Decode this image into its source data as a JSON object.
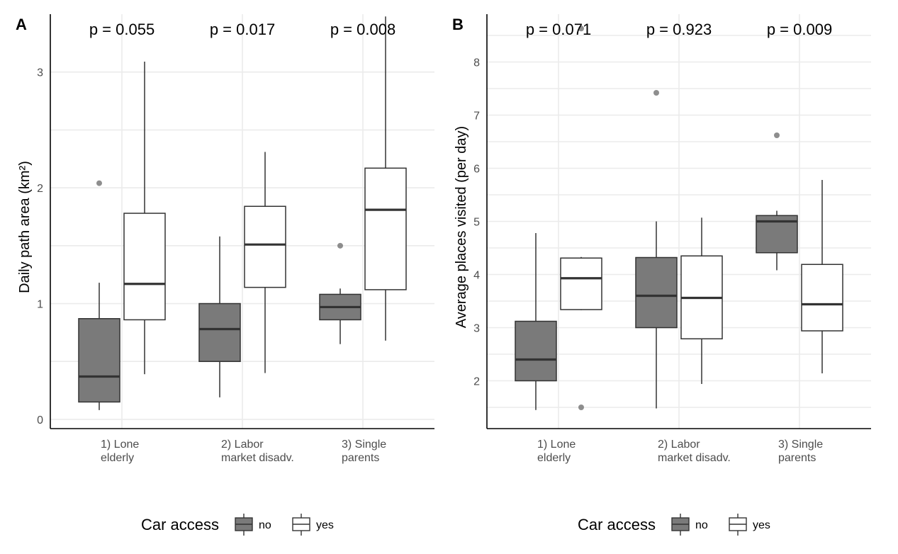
{
  "colors": {
    "no": "#7a7a7a",
    "yes": "#ffffff",
    "stroke": "#333333",
    "outlier": "#7a7a7a"
  },
  "legend": {
    "title": "Car access",
    "items": [
      {
        "key": "no",
        "label": "no"
      },
      {
        "key": "yes",
        "label": "yes"
      }
    ]
  },
  "chart_data": [
    {
      "type": "boxplot",
      "panel": "A",
      "ylabel": "Daily path area (km²)",
      "xlabel": "",
      "ylim": [
        -0.08,
        3.5
      ],
      "yticks": [
        0,
        1,
        2,
        3
      ],
      "grid": true,
      "categories": [
        "1) Lone\nelderly",
        "2) Labor\nmarket disadv.",
        "3) Single\nparents"
      ],
      "pvalues": [
        "p = 0.055",
        "p = 0.017",
        "p = 0.008"
      ],
      "series": [
        {
          "name": "no",
          "boxes": [
            {
              "whisker_low": 0.08,
              "q1": 0.15,
              "median": 0.37,
              "q3": 0.87,
              "whisker_high": 1.18,
              "outliers": [
                2.04
              ]
            },
            {
              "whisker_low": 0.19,
              "q1": 0.5,
              "median": 0.78,
              "q3": 1.0,
              "whisker_high": 1.58,
              "outliers": []
            },
            {
              "whisker_low": 0.65,
              "q1": 0.86,
              "median": 0.97,
              "q3": 1.08,
              "whisker_high": 1.13,
              "outliers": [
                1.5
              ]
            }
          ]
        },
        {
          "name": "yes",
          "boxes": [
            {
              "whisker_low": 0.39,
              "q1": 0.86,
              "median": 1.17,
              "q3": 1.78,
              "whisker_high": 3.09,
              "outliers": []
            },
            {
              "whisker_low": 0.4,
              "q1": 1.14,
              "median": 1.51,
              "q3": 1.84,
              "whisker_high": 2.31,
              "outliers": []
            },
            {
              "whisker_low": 0.68,
              "q1": 1.12,
              "median": 1.81,
              "q3": 2.17,
              "whisker_high": 3.48,
              "outliers": []
            }
          ]
        }
      ]
    },
    {
      "type": "boxplot",
      "panel": "B",
      "ylabel": "Average places visited (per day)",
      "xlabel": "",
      "ylim": [
        1.1,
        8.9
      ],
      "yticks": [
        2,
        3,
        4,
        5,
        6,
        7,
        8
      ],
      "grid": true,
      "categories": [
        "1) Lone\nelderly",
        "2) Labor\nmarket disadv.",
        "3) Single\nparents"
      ],
      "pvalues": [
        "p = 0.071",
        "p = 0.923",
        "p = 0.009"
      ],
      "series": [
        {
          "name": "no",
          "boxes": [
            {
              "whisker_low": 1.45,
              "q1": 2.0,
              "median": 2.4,
              "q3": 3.12,
              "whisker_high": 4.78,
              "outliers": []
            },
            {
              "whisker_low": 1.48,
              "q1": 3.0,
              "median": 3.6,
              "q3": 4.32,
              "whisker_high": 5.0,
              "outliers": [
                7.42
              ]
            },
            {
              "whisker_low": 4.08,
              "q1": 4.41,
              "median": 5.0,
              "q3": 5.11,
              "whisker_high": 5.2,
              "outliers": [
                6.62
              ]
            }
          ]
        },
        {
          "name": "yes",
          "boxes": [
            {
              "whisker_low": 3.33,
              "q1": 3.34,
              "median": 3.93,
              "q3": 4.31,
              "whisker_high": 4.33,
              "outliers": [
                1.5,
                8.63
              ]
            },
            {
              "whisker_low": 1.94,
              "q1": 2.79,
              "median": 3.56,
              "q3": 4.35,
              "whisker_high": 5.07,
              "outliers": []
            },
            {
              "whisker_low": 2.14,
              "q1": 2.94,
              "median": 3.44,
              "q3": 4.19,
              "whisker_high": 5.78,
              "outliers": []
            }
          ]
        }
      ]
    }
  ]
}
